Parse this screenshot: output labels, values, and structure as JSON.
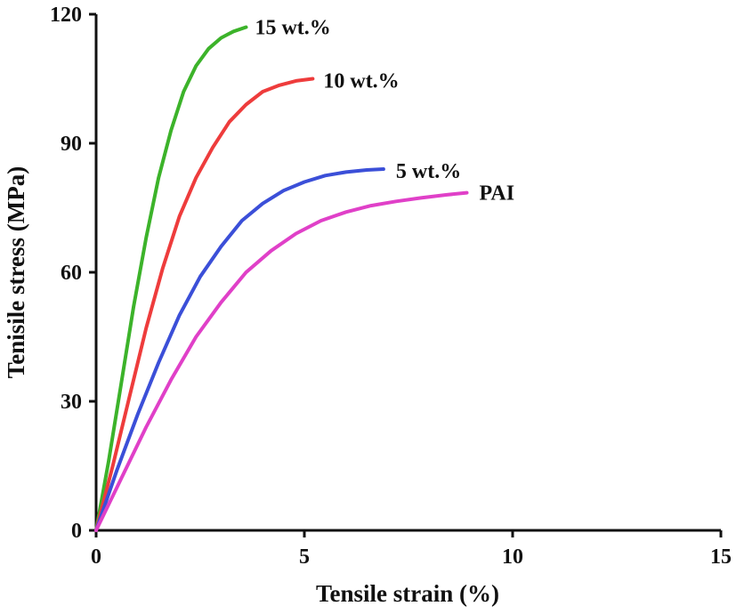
{
  "chart_data": {
    "type": "line",
    "xlabel": "Tensile strain (%)",
    "ylabel": "Tenisile stress (MPa)",
    "xlim": [
      0,
      15
    ],
    "ylim": [
      0,
      120
    ],
    "xticks": [
      0,
      5,
      10,
      15
    ],
    "yticks": [
      0,
      30,
      60,
      90,
      120
    ],
    "grid": false,
    "legend": "inline labels at curve ends",
    "series": [
      {
        "name": "15 wt.%",
        "color": "#3cb32a",
        "points": [
          [
            0,
            0
          ],
          [
            0.3,
            16
          ],
          [
            0.6,
            34
          ],
          [
            0.9,
            52
          ],
          [
            1.2,
            68
          ],
          [
            1.5,
            82
          ],
          [
            1.8,
            93
          ],
          [
            2.1,
            102
          ],
          [
            2.4,
            108
          ],
          [
            2.7,
            112
          ],
          [
            3.0,
            114.5
          ],
          [
            3.3,
            116
          ],
          [
            3.6,
            117
          ]
        ]
      },
      {
        "name": "10 wt.%",
        "color": "#ee3c3c",
        "points": [
          [
            0,
            0
          ],
          [
            0.4,
            15
          ],
          [
            0.8,
            31
          ],
          [
            1.2,
            47
          ],
          [
            1.6,
            61
          ],
          [
            2.0,
            73
          ],
          [
            2.4,
            82
          ],
          [
            2.8,
            89
          ],
          [
            3.2,
            95
          ],
          [
            3.6,
            99
          ],
          [
            4.0,
            102
          ],
          [
            4.4,
            103.5
          ],
          [
            4.8,
            104.5
          ],
          [
            5.2,
            105
          ]
        ]
      },
      {
        "name": "5 wt.%",
        "color": "#3b4fd8",
        "points": [
          [
            0,
            0
          ],
          [
            0.5,
            14
          ],
          [
            1.0,
            27
          ],
          [
            1.5,
            39
          ],
          [
            2.0,
            50
          ],
          [
            2.5,
            59
          ],
          [
            3.0,
            66
          ],
          [
            3.5,
            72
          ],
          [
            4.0,
            76
          ],
          [
            4.5,
            79
          ],
          [
            5.0,
            81
          ],
          [
            5.5,
            82.5
          ],
          [
            6.0,
            83.3
          ],
          [
            6.5,
            83.8
          ],
          [
            6.9,
            84
          ]
        ]
      },
      {
        "name": "PAI",
        "color": "#e040c8",
        "points": [
          [
            0,
            0
          ],
          [
            0.6,
            12
          ],
          [
            1.2,
            24
          ],
          [
            1.8,
            35
          ],
          [
            2.4,
            45
          ],
          [
            3.0,
            53
          ],
          [
            3.6,
            60
          ],
          [
            4.2,
            65
          ],
          [
            4.8,
            69
          ],
          [
            5.4,
            72
          ],
          [
            6.0,
            74
          ],
          [
            6.6,
            75.5
          ],
          [
            7.2,
            76.5
          ],
          [
            7.8,
            77.3
          ],
          [
            8.4,
            78
          ],
          [
            8.9,
            78.5
          ]
        ]
      }
    ]
  }
}
